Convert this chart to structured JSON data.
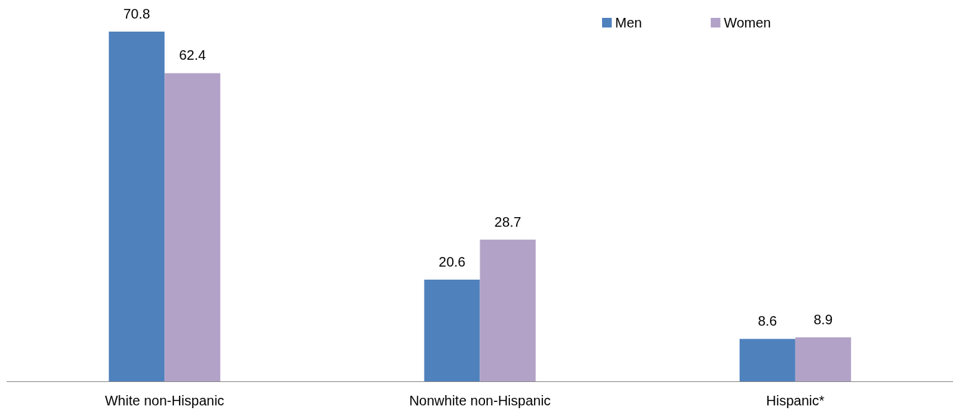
{
  "chart_data": {
    "type": "bar",
    "categories": [
      "White non-Hispanic",
      "Nonwhite non-Hispanic",
      "Hispanic*"
    ],
    "series": [
      {
        "name": "Men",
        "color": "#4f81bd",
        "values": [
          70.8,
          20.6,
          8.6
        ]
      },
      {
        "name": "Women",
        "color": "#b3a2c7",
        "values": [
          62.4,
          28.7,
          8.9
        ]
      }
    ],
    "data_labels": true,
    "legend": "top right"
  }
}
